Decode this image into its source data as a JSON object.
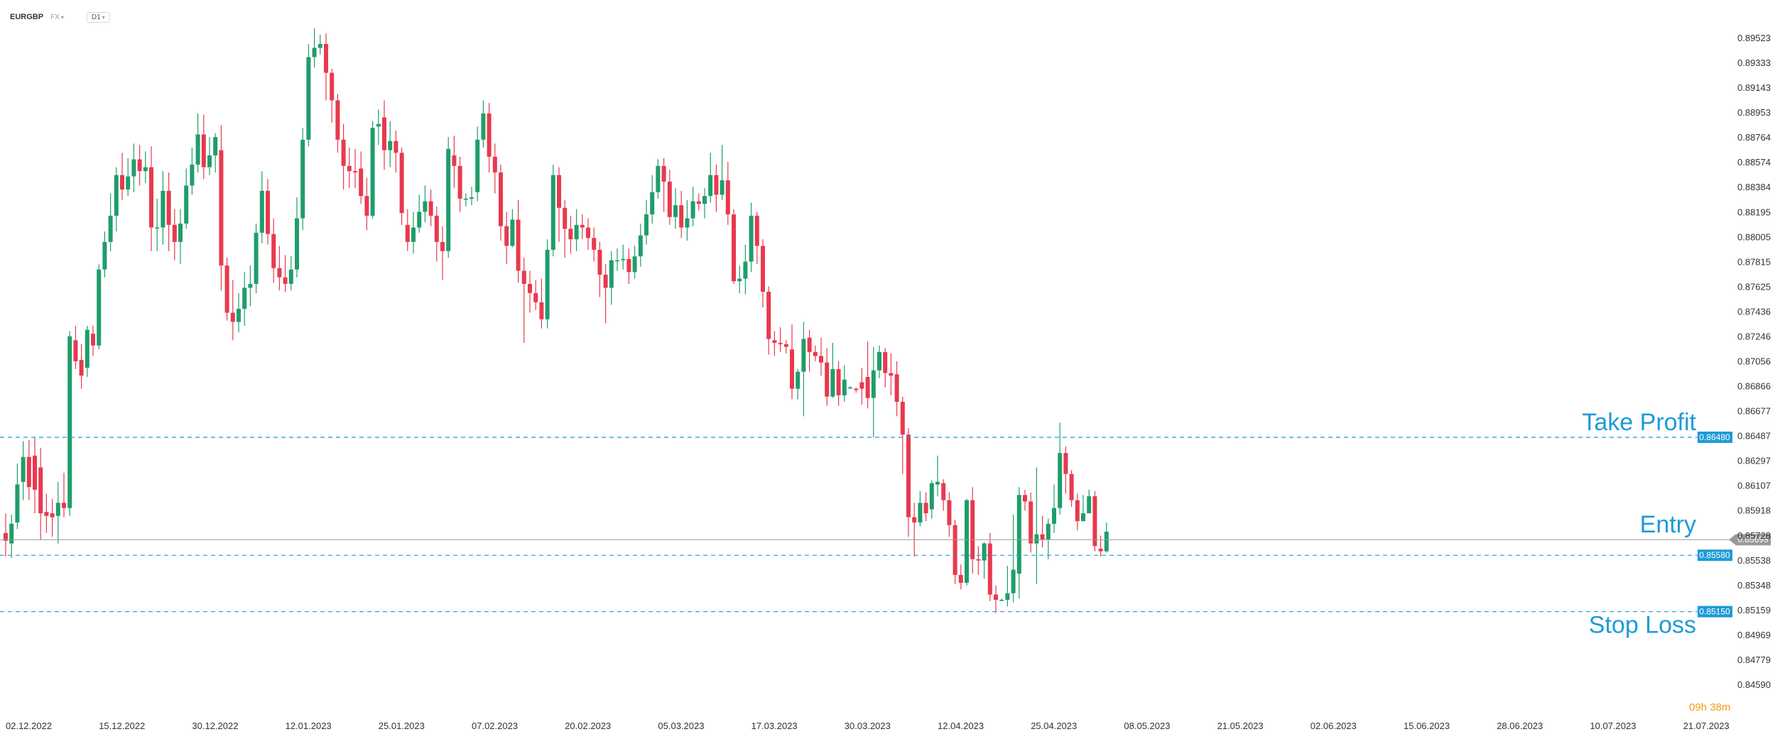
{
  "header": {
    "symbol": "EURGBP",
    "exchange": "FX",
    "timeframe": "D1"
  },
  "countdown": "09h 38m",
  "colors": {
    "up": "#1f9d6b",
    "down": "#e8394e",
    "level": "#1e9bd7",
    "price_line": "#999999",
    "countdown": "#f39c12"
  },
  "chart_data": {
    "type": "candlestick",
    "symbol": "EURGBP",
    "timeframe": "D1",
    "ylim": [
      0.8459,
      0.8962
    ],
    "y_ticks": [
      "0.89523",
      "0.89333",
      "0.89143",
      "0.88953",
      "0.88764",
      "0.88574",
      "0.88384",
      "0.88195",
      "0.88005",
      "0.87815",
      "0.87625",
      "0.87436",
      "0.87246",
      "0.87056",
      "0.86866",
      "0.86677",
      "0.86487",
      "0.86297",
      "0.86107",
      "0.85918",
      "0.85728",
      "0.85538",
      "0.85348",
      "0.85159",
      "0.84969",
      "0.84779",
      "0.84590"
    ],
    "x_ticks": [
      "02.12.2022",
      "15.12.2022",
      "30.12.2022",
      "12.01.2023",
      "25.01.2023",
      "07.02.2023",
      "20.02.2023",
      "05.03.2023",
      "17.03.2023",
      "30.03.2023",
      "12.04.2023",
      "25.04.2023",
      "08.05.2023",
      "21.05.2023",
      "02.06.2023",
      "15.06.2023",
      "28.06.2023",
      "10.07.2023",
      "21.07.2023"
    ],
    "bars_total": 192,
    "levels": [
      {
        "label": "Take Profit",
        "value": 0.8648,
        "badge": "0.86480"
      },
      {
        "label": "Entry",
        "value": 0.85699,
        "badge": "0.85699"
      },
      {
        "label": "Stop Loss",
        "value": 0.8515,
        "badge": "0.85150"
      }
    ],
    "candles": [
      [
        0.8575,
        0.8569,
        0.859,
        0.8557
      ],
      [
        0.8567,
        0.8582,
        0.8589,
        0.8556
      ],
      [
        0.8583,
        0.8612,
        0.8628,
        0.8578
      ],
      [
        0.8614,
        0.8633,
        0.8645,
        0.86
      ],
      [
        0.8633,
        0.861,
        0.8646,
        0.86
      ],
      [
        0.8634,
        0.8608,
        0.8648,
        0.859
      ],
      [
        0.8625,
        0.859,
        0.864,
        0.857
      ],
      [
        0.8591,
        0.8588,
        0.8605,
        0.8575
      ],
      [
        0.859,
        0.8587,
        0.8601,
        0.8572
      ],
      [
        0.8588,
        0.8598,
        0.8614,
        0.8567
      ],
      [
        0.8598,
        0.8594,
        0.8621,
        0.8587
      ],
      [
        0.8594,
        0.8725,
        0.8729,
        0.8588
      ],
      [
        0.8722,
        0.8706,
        0.8733,
        0.87
      ],
      [
        0.8707,
        0.8695,
        0.8719,
        0.8685
      ],
      [
        0.8701,
        0.873,
        0.8733,
        0.8694
      ],
      [
        0.8727,
        0.8718,
        0.8733,
        0.871
      ],
      [
        0.8718,
        0.8776,
        0.878,
        0.8715
      ],
      [
        0.8776,
        0.8797,
        0.8805,
        0.877
      ],
      [
        0.8797,
        0.8817,
        0.8834,
        0.879
      ],
      [
        0.8817,
        0.8848,
        0.8854,
        0.8805
      ],
      [
        0.8848,
        0.8837,
        0.8865,
        0.8829
      ],
      [
        0.8837,
        0.8847,
        0.8861,
        0.8832
      ],
      [
        0.8847,
        0.886,
        0.8872,
        0.8835
      ],
      [
        0.886,
        0.8851,
        0.8871,
        0.884
      ],
      [
        0.8851,
        0.8854,
        0.8866,
        0.8842
      ],
      [
        0.8854,
        0.8808,
        0.887,
        0.879
      ],
      [
        0.8808,
        0.8808,
        0.883,
        0.879
      ],
      [
        0.8808,
        0.8836,
        0.8851,
        0.8795
      ],
      [
        0.8836,
        0.881,
        0.885,
        0.879
      ],
      [
        0.881,
        0.8797,
        0.8822,
        0.8783
      ],
      [
        0.8797,
        0.8811,
        0.8822,
        0.878
      ],
      [
        0.8811,
        0.884,
        0.8853,
        0.8807
      ],
      [
        0.884,
        0.8856,
        0.8869,
        0.8833
      ],
      [
        0.8856,
        0.8879,
        0.8895,
        0.885
      ],
      [
        0.8879,
        0.8854,
        0.8894,
        0.8845
      ],
      [
        0.8854,
        0.8863,
        0.8877,
        0.8848
      ],
      [
        0.8863,
        0.8877,
        0.888,
        0.885
      ],
      [
        0.8867,
        0.8779,
        0.8886,
        0.876
      ],
      [
        0.8779,
        0.8743,
        0.8785,
        0.8737
      ],
      [
        0.8743,
        0.8736,
        0.8768,
        0.8722
      ],
      [
        0.8736,
        0.8746,
        0.8758,
        0.8728
      ],
      [
        0.8746,
        0.8762,
        0.8774,
        0.8733
      ],
      [
        0.8762,
        0.8765,
        0.8779,
        0.8748
      ],
      [
        0.8765,
        0.8804,
        0.8811,
        0.8758
      ],
      [
        0.8804,
        0.8836,
        0.8851,
        0.8796
      ],
      [
        0.8836,
        0.8803,
        0.8845,
        0.8795
      ],
      [
        0.8803,
        0.8777,
        0.8815,
        0.8766
      ],
      [
        0.8777,
        0.877,
        0.8794,
        0.876
      ],
      [
        0.877,
        0.8765,
        0.8787,
        0.8759
      ],
      [
        0.8765,
        0.8776,
        0.8786,
        0.876
      ],
      [
        0.8776,
        0.8815,
        0.8831,
        0.877
      ],
      [
        0.8815,
        0.8875,
        0.8884,
        0.8806
      ],
      [
        0.8875,
        0.8938,
        0.8948,
        0.887
      ],
      [
        0.8938,
        0.8945,
        0.896,
        0.893
      ],
      [
        0.8945,
        0.8948,
        0.8955,
        0.894
      ],
      [
        0.8948,
        0.8926,
        0.8956,
        0.8905
      ],
      [
        0.8926,
        0.8905,
        0.8929,
        0.8888
      ],
      [
        0.8905,
        0.8875,
        0.891,
        0.8865
      ],
      [
        0.8875,
        0.8855,
        0.8887,
        0.8837
      ],
      [
        0.8855,
        0.8851,
        0.8869,
        0.8838
      ],
      [
        0.8851,
        0.885,
        0.8868,
        0.8838
      ],
      [
        0.8853,
        0.8832,
        0.8866,
        0.8826
      ],
      [
        0.8832,
        0.8817,
        0.8846,
        0.8806
      ],
      [
        0.8817,
        0.8884,
        0.8889,
        0.8815
      ],
      [
        0.8885,
        0.8887,
        0.8898,
        0.8871
      ],
      [
        0.8892,
        0.8867,
        0.8905,
        0.8852
      ],
      [
        0.8867,
        0.8874,
        0.8889,
        0.8854
      ],
      [
        0.8874,
        0.8865,
        0.8882,
        0.885
      ],
      [
        0.8865,
        0.8819,
        0.8869,
        0.881
      ],
      [
        0.881,
        0.8797,
        0.8822,
        0.879
      ],
      [
        0.8797,
        0.8808,
        0.882,
        0.8788
      ],
      [
        0.8808,
        0.882,
        0.8833,
        0.8804
      ],
      [
        0.882,
        0.8828,
        0.884,
        0.8812
      ],
      [
        0.8828,
        0.8817,
        0.8837,
        0.8809
      ],
      [
        0.8817,
        0.8797,
        0.8824,
        0.8782
      ],
      [
        0.8797,
        0.879,
        0.8809,
        0.8768
      ],
      [
        0.879,
        0.8868,
        0.8877,
        0.8785
      ],
      [
        0.8863,
        0.8855,
        0.8878,
        0.8838
      ],
      [
        0.8855,
        0.883,
        0.8862,
        0.882
      ],
      [
        0.883,
        0.883,
        0.8834,
        0.8824
      ],
      [
        0.883,
        0.8831,
        0.8839,
        0.8825
      ],
      [
        0.8835,
        0.8875,
        0.8885,
        0.8828
      ],
      [
        0.8875,
        0.8895,
        0.8905,
        0.8869
      ],
      [
        0.8895,
        0.8862,
        0.8903,
        0.885
      ],
      [
        0.8862,
        0.885,
        0.8872,
        0.8834
      ],
      [
        0.885,
        0.8809,
        0.8856,
        0.8798
      ],
      [
        0.8809,
        0.8794,
        0.882,
        0.878
      ],
      [
        0.8794,
        0.8814,
        0.8822,
        0.8793
      ],
      [
        0.8814,
        0.8775,
        0.8829,
        0.8766
      ],
      [
        0.8775,
        0.8765,
        0.8785,
        0.872
      ],
      [
        0.8765,
        0.8758,
        0.8775,
        0.8743
      ],
      [
        0.8758,
        0.8751,
        0.8768,
        0.8745
      ],
      [
        0.8751,
        0.8738,
        0.8769,
        0.8731
      ],
      [
        0.8738,
        0.8791,
        0.8799,
        0.8731
      ],
      [
        0.8791,
        0.8848,
        0.8856,
        0.8786
      ],
      [
        0.8848,
        0.8823,
        0.8854,
        0.8797
      ],
      [
        0.8823,
        0.8807,
        0.8829,
        0.8785
      ],
      [
        0.8807,
        0.8799,
        0.8817,
        0.8788
      ],
      [
        0.8799,
        0.881,
        0.8822,
        0.879
      ],
      [
        0.881,
        0.8808,
        0.8818,
        0.8799
      ],
      [
        0.8808,
        0.88,
        0.8815,
        0.8791
      ],
      [
        0.88,
        0.8791,
        0.8808,
        0.8782
      ],
      [
        0.8791,
        0.8772,
        0.8797,
        0.8755
      ],
      [
        0.8772,
        0.8762,
        0.878,
        0.8735
      ],
      [
        0.8762,
        0.8783,
        0.879,
        0.8749
      ],
      [
        0.8783,
        0.8783,
        0.8792,
        0.8775
      ],
      [
        0.8783,
        0.8784,
        0.8795,
        0.8776
      ],
      [
        0.8784,
        0.8774,
        0.8792,
        0.8765
      ],
      [
        0.8774,
        0.8786,
        0.8794,
        0.8769
      ],
      [
        0.8786,
        0.8802,
        0.8811,
        0.8778
      ],
      [
        0.8802,
        0.8818,
        0.8829,
        0.8795
      ],
      [
        0.8818,
        0.8835,
        0.8848,
        0.8811
      ],
      [
        0.8835,
        0.8855,
        0.886,
        0.883
      ],
      [
        0.8855,
        0.8843,
        0.8861,
        0.882
      ],
      [
        0.8843,
        0.8816,
        0.8852,
        0.881
      ],
      [
        0.8816,
        0.8825,
        0.8838,
        0.8807
      ],
      [
        0.8825,
        0.8808,
        0.8836,
        0.88
      ],
      [
        0.8808,
        0.8815,
        0.8829,
        0.8798
      ],
      [
        0.8815,
        0.8828,
        0.8839,
        0.8809
      ],
      [
        0.8828,
        0.8826,
        0.8834,
        0.8821
      ],
      [
        0.8826,
        0.8832,
        0.8838,
        0.8815
      ],
      [
        0.8832,
        0.8848,
        0.8865,
        0.8827
      ],
      [
        0.8848,
        0.8833,
        0.8856,
        0.882
      ],
      [
        0.8833,
        0.8844,
        0.8871,
        0.8829
      ],
      [
        0.8844,
        0.8818,
        0.8858,
        0.881
      ],
      [
        0.8818,
        0.8767,
        0.8822,
        0.8765
      ],
      [
        0.8767,
        0.8769,
        0.8779,
        0.8758
      ],
      [
        0.8769,
        0.8782,
        0.8795,
        0.8757
      ],
      [
        0.8782,
        0.8817,
        0.8827,
        0.8774
      ],
      [
        0.8817,
        0.8794,
        0.882,
        0.878
      ],
      [
        0.8794,
        0.8759,
        0.8799,
        0.8747
      ],
      [
        0.8759,
        0.8723,
        0.8763,
        0.8711
      ],
      [
        0.8722,
        0.872,
        0.8729,
        0.871
      ],
      [
        0.872,
        0.8719,
        0.8732,
        0.8713
      ],
      [
        0.8719,
        0.8717,
        0.8722,
        0.8712
      ],
      [
        0.8715,
        0.8685,
        0.8734,
        0.8677
      ],
      [
        0.8685,
        0.8698,
        0.87,
        0.8677
      ],
      [
        0.8698,
        0.8723,
        0.8736,
        0.8664
      ],
      [
        0.8724,
        0.8713,
        0.873,
        0.8698
      ],
      [
        0.8713,
        0.871,
        0.8718,
        0.8706
      ],
      [
        0.871,
        0.8705,
        0.8724,
        0.8695
      ],
      [
        0.8705,
        0.8679,
        0.8716,
        0.8672
      ],
      [
        0.8679,
        0.87,
        0.872,
        0.8678
      ],
      [
        0.87,
        0.868,
        0.8706,
        0.8672
      ],
      [
        0.868,
        0.8692,
        0.8703,
        0.8675
      ],
      [
        0.8686,
        0.8686,
        0.8687,
        0.8685
      ],
      [
        0.8685,
        0.8684,
        0.8686,
        0.8682
      ],
      [
        0.869,
        0.8685,
        0.8701,
        0.8673
      ],
      [
        0.8694,
        0.8678,
        0.8721,
        0.867
      ],
      [
        0.8678,
        0.8699,
        0.8717,
        0.8648
      ],
      [
        0.8699,
        0.8713,
        0.8718,
        0.8693
      ],
      [
        0.8713,
        0.8697,
        0.8716,
        0.8686
      ],
      [
        0.8697,
        0.8695,
        0.8712,
        0.868
      ],
      [
        0.8696,
        0.8675,
        0.8706,
        0.8664
      ],
      [
        0.8675,
        0.865,
        0.8679,
        0.862
      ],
      [
        0.865,
        0.8587,
        0.8655,
        0.8572
      ],
      [
        0.8587,
        0.8583,
        0.8598,
        0.8557
      ],
      [
        0.8583,
        0.8598,
        0.8607,
        0.858
      ],
      [
        0.8598,
        0.859,
        0.8606,
        0.8584
      ],
      [
        0.8593,
        0.8613,
        0.8615,
        0.8586
      ],
      [
        0.8612,
        0.8614,
        0.8634,
        0.8603
      ],
      [
        0.8613,
        0.86,
        0.8616,
        0.8592
      ],
      [
        0.86,
        0.8581,
        0.8606,
        0.8572
      ],
      [
        0.8581,
        0.8543,
        0.8585,
        0.8536
      ],
      [
        0.8543,
        0.8537,
        0.8551,
        0.8532
      ],
      [
        0.8537,
        0.86,
        0.8601,
        0.8535
      ],
      [
        0.86,
        0.8555,
        0.861,
        0.8544
      ],
      [
        0.8555,
        0.8554,
        0.8565,
        0.8543
      ],
      [
        0.8554,
        0.8567,
        0.8568,
        0.854
      ],
      [
        0.8567,
        0.8528,
        0.8575,
        0.8523
      ],
      [
        0.8528,
        0.8524,
        0.8535,
        0.8514
      ],
      [
        0.8524,
        0.8524,
        0.8525,
        0.8523
      ],
      [
        0.8524,
        0.8529,
        0.855,
        0.8519
      ],
      [
        0.8529,
        0.8547,
        0.8589,
        0.8522
      ],
      [
        0.8544,
        0.8604,
        0.861,
        0.8525
      ],
      [
        0.8604,
        0.8599,
        0.8608,
        0.8592
      ],
      [
        0.8599,
        0.8567,
        0.8606,
        0.856
      ],
      [
        0.8567,
        0.8574,
        0.8625,
        0.8536
      ],
      [
        0.8574,
        0.857,
        0.8588,
        0.8564
      ],
      [
        0.857,
        0.8582,
        0.8586,
        0.8555
      ],
      [
        0.8582,
        0.8594,
        0.8612,
        0.8575
      ],
      [
        0.8594,
        0.8636,
        0.8659,
        0.8589
      ],
      [
        0.8636,
        0.862,
        0.8641,
        0.8605
      ],
      [
        0.862,
        0.86,
        0.8623,
        0.8595
      ],
      [
        0.86,
        0.8584,
        0.8605,
        0.8577
      ],
      [
        0.8584,
        0.859,
        0.8604,
        0.8584
      ],
      [
        0.859,
        0.8603,
        0.8608,
        0.8594
      ],
      [
        0.8603,
        0.8565,
        0.8607,
        0.8561
      ],
      [
        0.8563,
        0.8561,
        0.8573,
        0.8557
      ],
      [
        0.8561,
        0.8576,
        0.8583,
        0.856
      ]
    ]
  }
}
